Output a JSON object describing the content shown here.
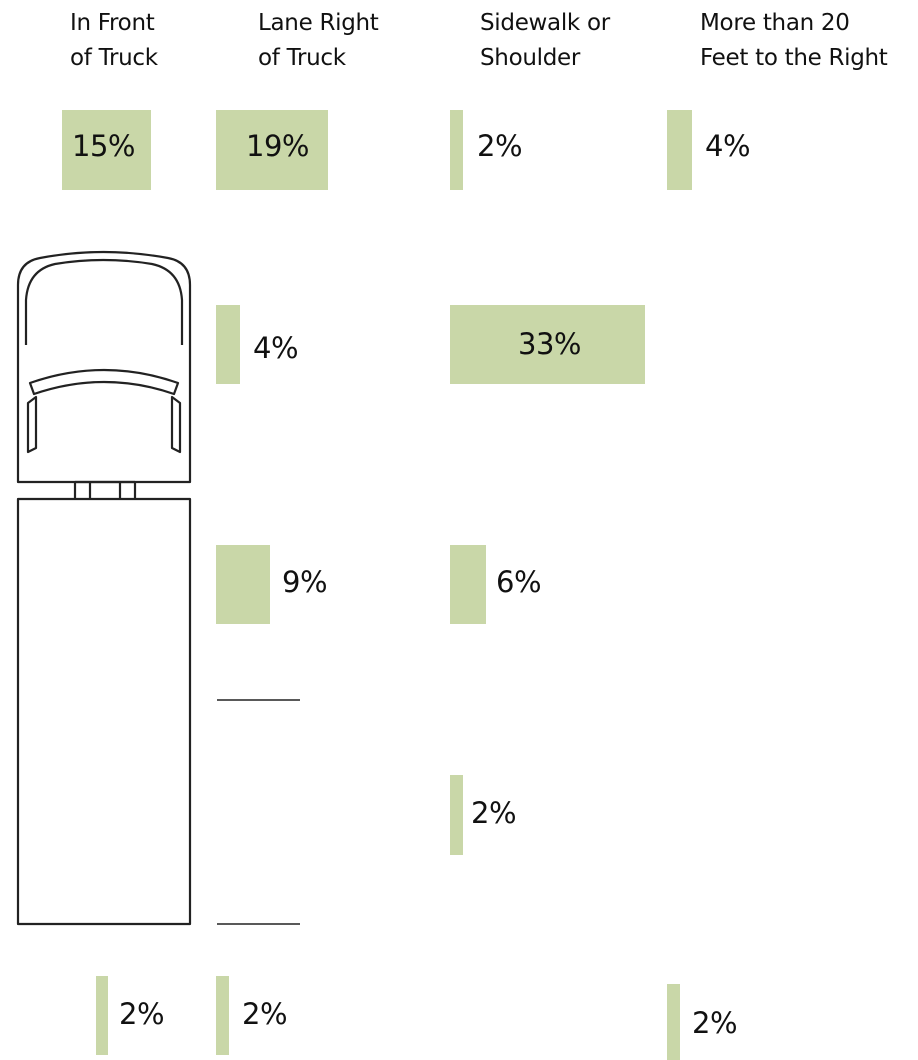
{
  "headers": {
    "front": [
      "In Front",
      "of Truck"
    ],
    "lane_right": [
      "Lane Right",
      "of Truck"
    ],
    "sidewalk": [
      "Sidewalk or",
      "Shoulder"
    ],
    "more_than_20": [
      "More than 20",
      "Feet to the Right"
    ]
  },
  "cells": {
    "front_top": {
      "label": "15%",
      "value": 15
    },
    "lane_right_top": {
      "label": "19%",
      "value": 19
    },
    "sidewalk_top": {
      "label": "2%",
      "value": 2
    },
    "more_than_20_top": {
      "label": "4%",
      "value": 4
    },
    "lane_right_cab": {
      "label": "4%",
      "value": 4
    },
    "sidewalk_cab": {
      "label": "33%",
      "value": 33
    },
    "lane_right_trailer_front": {
      "label": "9%",
      "value": 9
    },
    "sidewalk_trailer_front": {
      "label": "6%",
      "value": 6
    },
    "sidewalk_trailer_mid": {
      "label": "2%",
      "value": 2
    },
    "front_behind": {
      "label": "2%",
      "value": 2
    },
    "lane_right_behind": {
      "label": "2%",
      "value": 2
    },
    "more_than_20_behind": {
      "label": "2%",
      "value": 2
    }
  },
  "colors": {
    "bar": "#c9d7a8",
    "outline": "#222222"
  },
  "icons": {
    "truck": "truck-top-view-icon"
  }
}
